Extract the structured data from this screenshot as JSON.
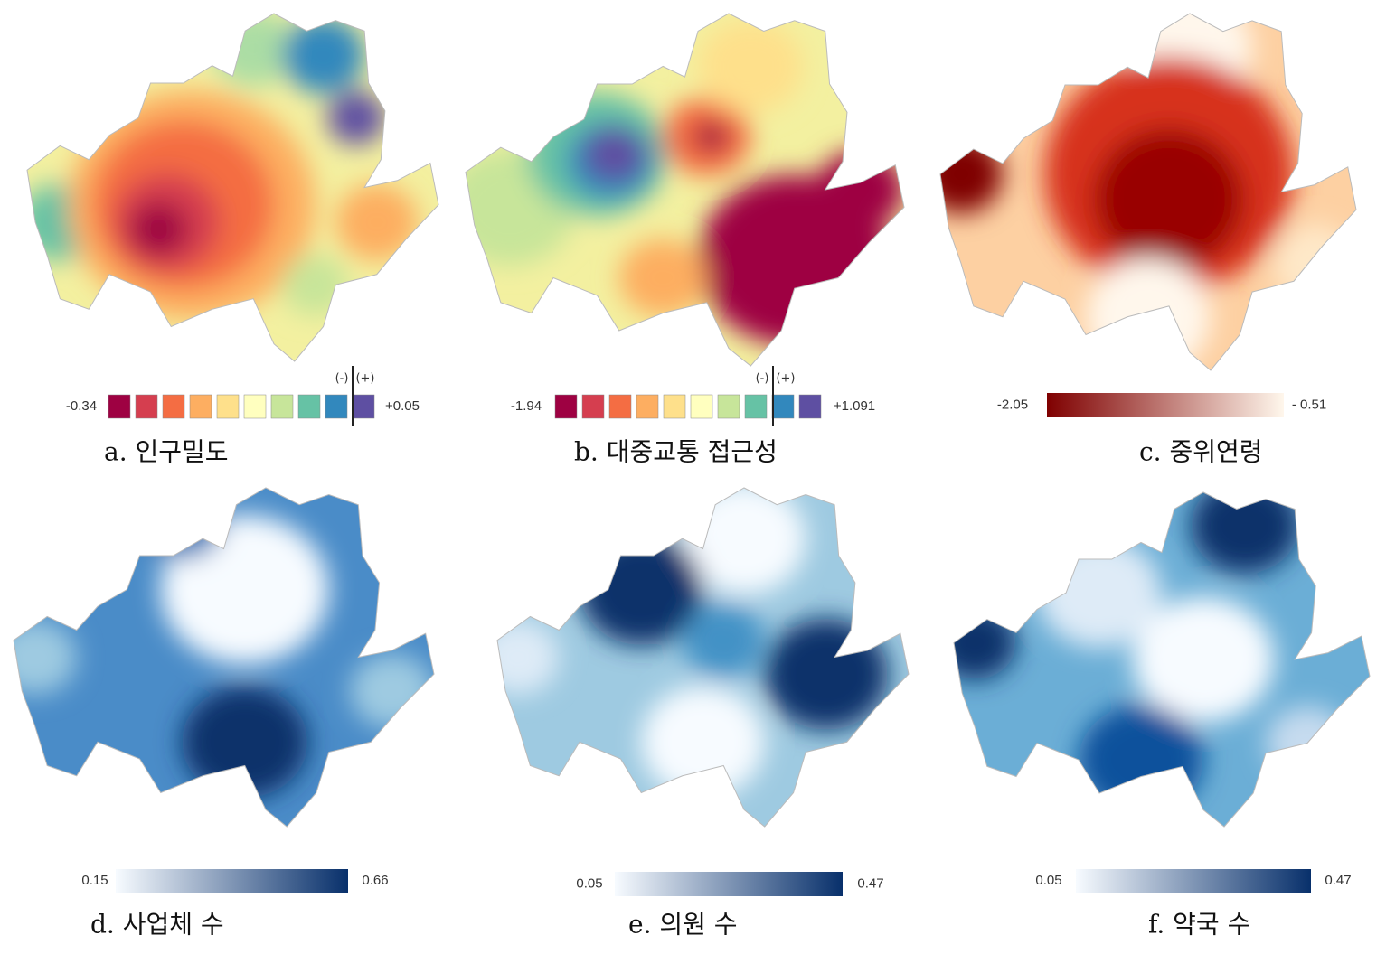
{
  "panels": [
    {
      "caption": "a. 인구밀도",
      "legend": {
        "type": "discrete",
        "min_label": "-0.34",
        "max_label": "+0.05",
        "neg_label": "(-)",
        "pos_label": "(+)",
        "colors": [
          "#9e0142",
          "#d53e4f",
          "#f46d43",
          "#fdae61",
          "#fee08b",
          "#ffffbf",
          "#c7e59a",
          "#66c2a5",
          "#3288bd",
          "#5e4fa2"
        ]
      }
    },
    {
      "caption": "b. 대중교통 접근성",
      "legend": {
        "type": "discrete",
        "min_label": "-1.94",
        "max_label": "+1.091",
        "neg_label": "(-)",
        "pos_label": "(+)",
        "colors": [
          "#9e0142",
          "#d53e4f",
          "#f46d43",
          "#fdae61",
          "#fee08b",
          "#ffffbf",
          "#c7e59a",
          "#66c2a5",
          "#3288bd",
          "#5e4fa2"
        ]
      }
    },
    {
      "caption": "c. 중위연령",
      "legend": {
        "type": "gradient",
        "min_label": "-2.05",
        "max_label": "- 0.51",
        "colors": [
          "#7f0000",
          "#fff7ec"
        ]
      }
    },
    {
      "caption": "d. 사업체 수",
      "legend": {
        "type": "gradient",
        "min_label": "0.15",
        "max_label": "0.66",
        "colors": [
          "#f7fbff",
          "#08306b"
        ]
      }
    },
    {
      "caption": "e. 의원 수",
      "legend": {
        "type": "gradient",
        "min_label": "0.05",
        "max_label": "0.47",
        "colors": [
          "#f7fbff",
          "#08306b"
        ]
      }
    },
    {
      "caption": "f. 약국 수",
      "legend": {
        "type": "gradient",
        "min_label": "0.05",
        "max_label": "0.47",
        "colors": [
          "#f7fbff",
          "#08306b"
        ]
      }
    }
  ]
}
